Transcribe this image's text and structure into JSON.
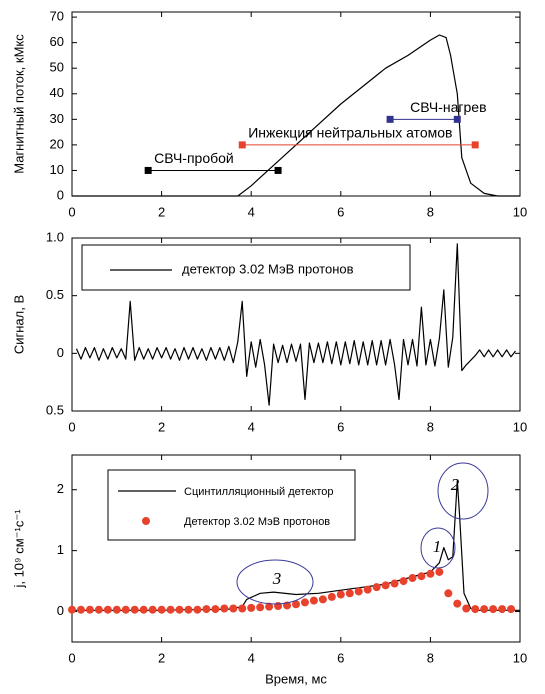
{
  "chart_data": [
    {
      "type": "line",
      "ylabel": "Магнитный поток, кМкс",
      "xlim": [
        0,
        10
      ],
      "xticks": [
        0,
        2,
        4,
        6,
        8,
        10
      ],
      "ylim": [
        0,
        72
      ],
      "yticks": [
        0,
        10,
        20,
        30,
        40,
        50,
        60,
        70
      ],
      "series": [
        {
          "color": "#000000",
          "x": [
            0,
            3.7,
            4,
            4.5,
            5,
            5.5,
            6,
            6.5,
            7,
            7.5,
            8,
            8.2,
            8.35,
            8.45,
            8.5,
            8.6,
            8.7,
            8.9,
            9.2,
            9.5,
            10
          ],
          "values": [
            0,
            0,
            4,
            12,
            20,
            28,
            36,
            43,
            50,
            55,
            61,
            63,
            62,
            55,
            50,
            40,
            15,
            5,
            1,
            0,
            0
          ]
        }
      ],
      "annotations": [
        {
          "text": "СВЧ-пробой",
          "x": [
            1.7,
            4.6
          ],
          "y": 10,
          "color": "#000000"
        },
        {
          "text": "Инжекция нейтральных атомов",
          "x": [
            3.8,
            9.0
          ],
          "y": 20,
          "color": "#e8412c"
        },
        {
          "text": "СВЧ-нагрев",
          "x": [
            7.1,
            8.6
          ],
          "y": 30,
          "color": "#33338f"
        }
      ]
    },
    {
      "type": "line",
      "ylabel": "Сигнал, В",
      "xlim": [
        0,
        10
      ],
      "xticks": [
        0,
        2,
        4,
        6,
        8,
        10
      ],
      "ylim": [
        -0.5,
        1.0
      ],
      "yticks": [
        {
          "value": 1,
          "label": "1.0"
        },
        {
          "value": 0.5,
          "label": "0.5"
        },
        0,
        {
          "value": -0.5,
          "label": "0.5"
        }
      ],
      "series": [
        {
          "name": "детектор 3.02 МэВ протонов",
          "color": "#000000",
          "x": [
            0.1,
            0.2,
            0.3,
            0.4,
            0.5,
            0.6,
            0.7,
            0.8,
            0.9,
            1.0,
            1.1,
            1.2,
            1.3,
            1.4,
            1.5,
            1.6,
            1.7,
            1.8,
            1.9,
            2.0,
            2.1,
            2.2,
            2.3,
            2.4,
            2.5,
            2.6,
            2.7,
            2.8,
            2.9,
            3.0,
            3.1,
            3.2,
            3.3,
            3.4,
            3.5,
            3.6,
            3.7,
            3.8,
            3.9,
            4.0,
            4.1,
            4.2,
            4.3,
            4.4,
            4.5,
            4.6,
            4.7,
            4.8,
            4.9,
            5.0,
            5.1,
            5.2,
            5.3,
            5.4,
            5.5,
            5.6,
            5.7,
            5.8,
            5.9,
            6.0,
            6.1,
            6.2,
            6.3,
            6.4,
            6.5,
            6.6,
            6.7,
            6.8,
            6.9,
            7.0,
            7.1,
            7.2,
            7.3,
            7.4,
            7.5,
            7.6,
            7.7,
            7.8,
            7.9,
            8.0,
            8.1,
            8.2,
            8.3,
            8.4,
            8.5,
            8.6,
            8.7,
            8.8,
            8.9,
            9.0,
            9.1,
            9.2,
            9.3,
            9.4,
            9.5,
            9.6,
            9.7,
            9.8,
            9.9
          ],
          "values": [
            0.04,
            -0.05,
            0.05,
            -0.04,
            0.05,
            -0.06,
            0.04,
            -0.05,
            0.05,
            -0.04,
            0.04,
            -0.05,
            0.45,
            -0.06,
            0.05,
            -0.05,
            0.04,
            -0.05,
            0.05,
            -0.04,
            0.05,
            -0.05,
            0.04,
            -0.06,
            0.05,
            -0.05,
            0.05,
            -0.05,
            0.04,
            -0.06,
            0.05,
            -0.05,
            0.05,
            -0.06,
            0.06,
            -0.08,
            0.1,
            0.45,
            -0.2,
            0.1,
            -0.12,
            0.12,
            -0.1,
            -0.45,
            0.08,
            -0.08,
            0.07,
            -0.08,
            0.08,
            -0.07,
            0.08,
            -0.4,
            0.09,
            -0.08,
            0.09,
            -0.08,
            0.1,
            -0.09,
            0.1,
            -0.1,
            0.1,
            -0.09,
            0.11,
            -0.1,
            0.1,
            -0.1,
            0.11,
            -0.1,
            0.11,
            -0.1,
            0.12,
            -0.1,
            -0.4,
            0.12,
            -0.1,
            0.12,
            -0.11,
            0.4,
            -0.1,
            0.12,
            -0.11,
            0.13,
            0.55,
            -0.12,
            0.14,
            0.95,
            -0.15,
            -0.1,
            -0.06,
            -0.02,
            0.03,
            -0.03,
            0.03,
            -0.03,
            0.03,
            -0.03,
            0.03,
            -0.03,
            0.02
          ]
        }
      ]
    },
    {
      "type": "line",
      "ylabel": "j, 10⁹ см⁻¹с⁻¹",
      "xlabel": "Время, мс",
      "xlim": [
        0,
        10
      ],
      "xticks": [
        0,
        2,
        4,
        6,
        8,
        10
      ],
      "ylim": [
        -0.5,
        2.57
      ],
      "yticks": [
        0,
        1,
        2
      ],
      "series": [
        {
          "name": "Сцинтилляционный детектор",
          "type": "line",
          "color": "#000000",
          "x": [
            0,
            0.5,
            1,
            1.5,
            2,
            2.5,
            3,
            3.5,
            3.8,
            3.9,
            4.2,
            4.5,
            5,
            5.5,
            6,
            6.5,
            7,
            7.5,
            8,
            8.2,
            8.3,
            8.4,
            8.5,
            8.6,
            8.65,
            8.75,
            8.9,
            9,
            10
          ],
          "values": [
            0.02,
            0.02,
            0.02,
            0.02,
            0.02,
            0.03,
            0.03,
            0.04,
            0.08,
            0.2,
            0.3,
            0.32,
            0.28,
            0.3,
            0.35,
            0.4,
            0.45,
            0.55,
            0.65,
            0.8,
            1.05,
            0.85,
            0.9,
            2.15,
            1.6,
            0.3,
            0.05,
            0.02,
            0.02
          ]
        },
        {
          "name": "Детектор 3.02 МэВ протонов",
          "type": "scatter",
          "color": "#e8412c",
          "x": [
            0,
            0.2,
            0.4,
            0.6,
            0.8,
            1.0,
            1.2,
            1.4,
            1.6,
            1.8,
            2.0,
            2.2,
            2.4,
            2.6,
            2.8,
            3.0,
            3.2,
            3.4,
            3.6,
            3.8,
            4.0,
            4.2,
            4.4,
            4.6,
            4.8,
            5.0,
            5.2,
            5.4,
            5.6,
            5.8,
            6.0,
            6.2,
            6.4,
            6.6,
            6.8,
            7.0,
            7.2,
            7.4,
            7.6,
            7.8,
            8.0,
            8.2,
            8.4,
            8.6,
            8.8,
            9.0,
            9.2,
            9.4,
            9.6,
            9.8
          ],
          "values": [
            0.03,
            0.03,
            0.03,
            0.03,
            0.03,
            0.03,
            0.03,
            0.03,
            0.03,
            0.03,
            0.03,
            0.03,
            0.03,
            0.03,
            0.03,
            0.04,
            0.04,
            0.05,
            0.05,
            0.05,
            0.06,
            0.07,
            0.08,
            0.09,
            0.1,
            0.12,
            0.15,
            0.18,
            0.2,
            0.24,
            0.28,
            0.3,
            0.33,
            0.36,
            0.4,
            0.43,
            0.46,
            0.5,
            0.55,
            0.58,
            0.62,
            0.65,
            0.3,
            0.13,
            0.05,
            0.04,
            0.04,
            0.04,
            0.04,
            0.04
          ]
        }
      ],
      "annotations": [
        {
          "text": "1"
        },
        {
          "text": "2"
        },
        {
          "text": "3"
        }
      ]
    }
  ]
}
